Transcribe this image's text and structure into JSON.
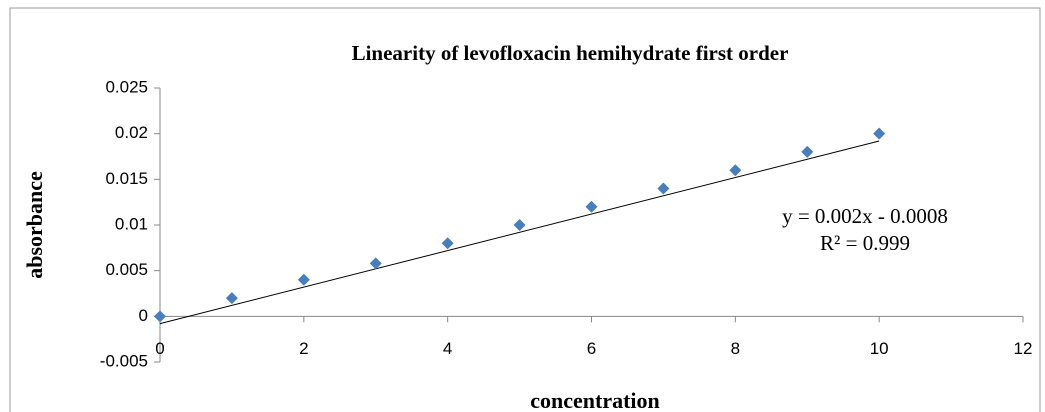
{
  "chart_data": {
    "type": "scatter",
    "title": "Linearity of levofloxacin hemihydrate  first order",
    "x_label": "concentration",
    "y_label": "absorbance",
    "x": [
      0,
      1,
      2,
      3,
      4,
      5,
      6,
      7,
      8,
      9,
      10
    ],
    "values": [
      0,
      0.002,
      0.004,
      0.0058,
      0.008,
      0.01,
      0.012,
      0.014,
      0.016,
      0.018,
      0.02
    ],
    "color": "#4a7ebb",
    "xlim": [
      0,
      12
    ],
    "xticks": [
      0,
      2,
      4,
      6,
      8,
      10,
      12
    ],
    "ylim": [
      -0.005,
      0.025
    ],
    "yticks": [
      -0.005,
      0,
      0.005,
      0.01,
      0.015,
      0.02,
      0.025
    ],
    "grid": false,
    "trendline": {
      "slope": 0.002,
      "intercept": -0.0008,
      "equation": "y = 0.002x - 0.0008",
      "r2": "R² = 0.999"
    }
  }
}
